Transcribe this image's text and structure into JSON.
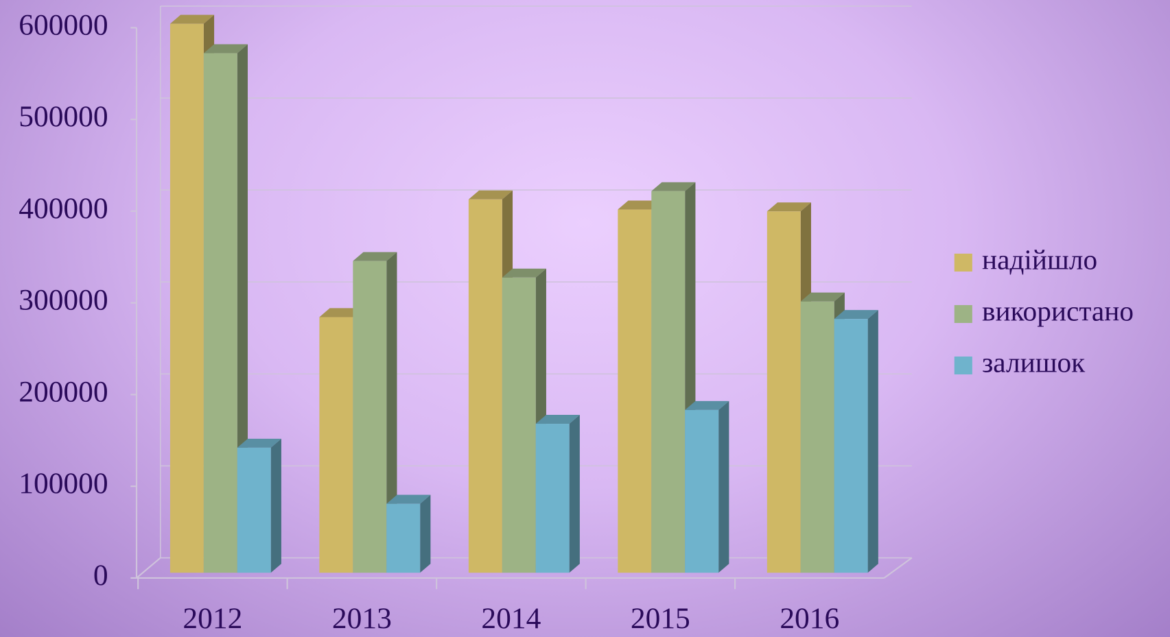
{
  "chart_data": {
    "type": "bar3d",
    "categories": [
      "2012",
      "2013",
      "2014",
      "2015",
      "2016"
    ],
    "series": [
      {
        "name": "надійшло",
        "color": "#cfb865",
        "values": [
          597000,
          278000,
          406000,
          395000,
          393000
        ]
      },
      {
        "name": "використано",
        "color": "#9db385",
        "values": [
          565000,
          339000,
          321000,
          415000,
          295000
        ]
      },
      {
        "name": "залишок",
        "color": "#6fb3cc",
        "values": [
          136000,
          75000,
          162000,
          177000,
          276000
        ]
      }
    ],
    "ylim": [
      0,
      600000
    ],
    "yticks": [
      0,
      100000,
      200000,
      300000,
      400000,
      500000,
      600000
    ],
    "grid": true,
    "legend": "right"
  }
}
